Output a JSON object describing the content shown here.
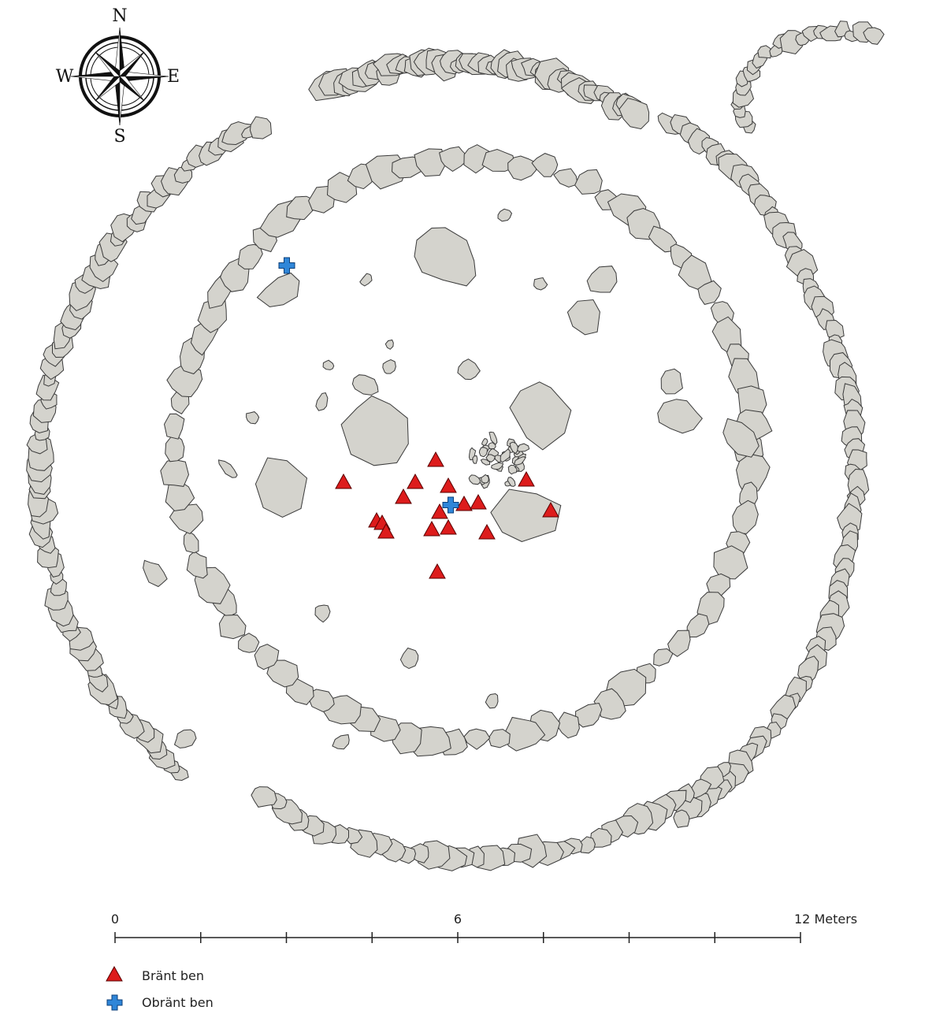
{
  "compass": {
    "north": "N",
    "south": "S",
    "east": "E",
    "west": "W"
  },
  "scale_bar": {
    "ticks": [
      {
        "label": "0"
      },
      {
        "label": ""
      },
      {
        "label": ""
      },
      {
        "label": ""
      },
      {
        "label": "6"
      },
      {
        "label": ""
      },
      {
        "label": ""
      },
      {
        "label": ""
      },
      {
        "label": "12 Meters"
      }
    ]
  },
  "legend": {
    "items": [
      {
        "label": "Bränt ben",
        "symbol": "red-triangle",
        "color": "#dd1c1c"
      },
      {
        "label": "Obränt ben",
        "symbol": "blue-cross",
        "color": "#2f86d8"
      }
    ]
  },
  "colors": {
    "stone_fill": "#d4d3cd",
    "stone_stroke": "#3a3a3a"
  }
}
